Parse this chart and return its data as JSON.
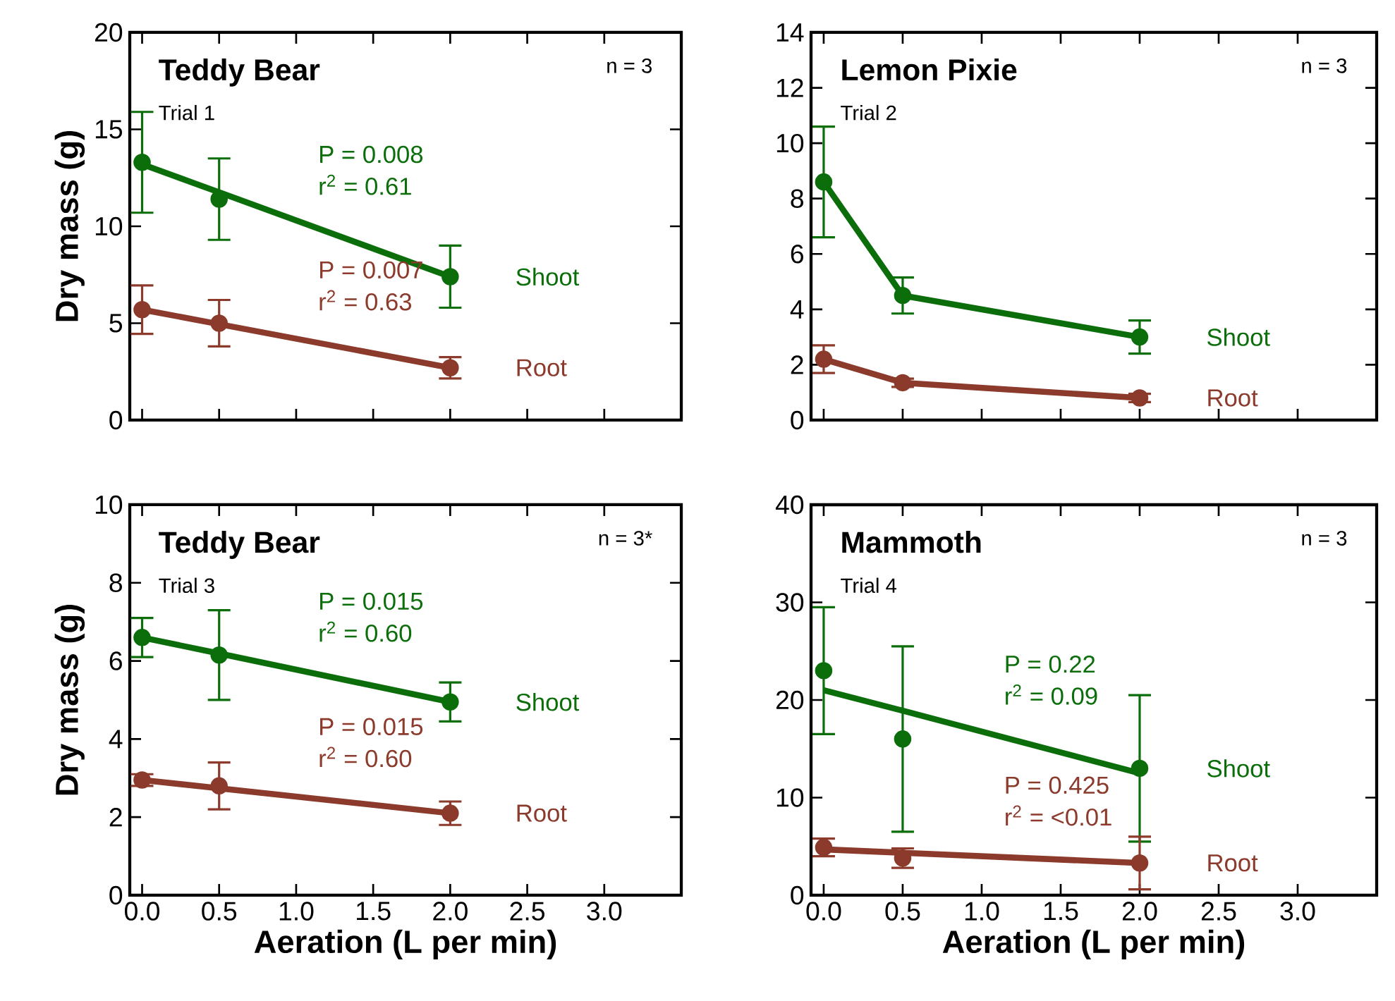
{
  "chart_data": [
    {
      "type": "scatter",
      "title": "Teddy Bear",
      "subtitle": "Trial 1",
      "ylabel": "Dry mass (g)",
      "x": [
        0,
        0.5,
        2
      ],
      "xlim": [
        -0.08,
        3.5
      ],
      "ylim": [
        0,
        20
      ],
      "xticks": [
        0,
        0.5,
        1,
        1.5,
        2,
        2.5,
        3
      ],
      "yticks": [
        0,
        5,
        10,
        15,
        20
      ],
      "tick_labels": "y",
      "marker": "circle",
      "series": [
        {
          "name": "Shoot",
          "color": "#0b6e0b",
          "values": [
            13.3,
            11.4,
            7.4
          ],
          "errors": [
            2.6,
            2.1,
            1.6
          ]
        },
        {
          "name": "Root",
          "color": "#8b3a2b",
          "values": [
            5.7,
            5.0,
            2.7
          ],
          "errors": [
            1.25,
            1.2,
            0.55
          ]
        },
        {
          "type": "line",
          "marker": "none",
          "color": "#0b6e0b",
          "values": [
            13.2,
            11.75,
            7.4
          ]
        },
        {
          "type": "line",
          "marker": "none",
          "color": "#8b3a2b",
          "values": [
            5.7,
            4.95,
            2.7
          ]
        }
      ],
      "annotations": [
        "n = 3",
        "P = 0.008",
        "r$^{2}$ = 0.61",
        "P = 0.007",
        "r$^{2}$ = 0.63"
      ]
    },
    {
      "type": "line",
      "title": "Lemon Pixie",
      "subtitle": "Trial 2",
      "x": [
        0,
        0.5,
        2
      ],
      "xlim": [
        -0.08,
        3.5
      ],
      "ylim": [
        0,
        14
      ],
      "xticks": [
        0,
        0.5,
        1,
        1.5,
        2,
        2.5,
        3
      ],
      "yticks": [
        0,
        2,
        4,
        6,
        8,
        10,
        12,
        14
      ],
      "tick_labels": "y",
      "marker": "circle",
      "series": [
        {
          "name": "Shoot",
          "color": "#0b6e0b",
          "values": [
            8.6,
            4.5,
            3.0
          ],
          "errors": [
            2.0,
            0.65,
            0.6
          ]
        },
        {
          "name": "Root",
          "color": "#8b3a2b",
          "values": [
            2.2,
            1.35,
            0.8
          ],
          "errors": [
            0.5,
            0.15,
            0.15
          ]
        }
      ],
      "annotations": [
        "n = 3"
      ]
    },
    {
      "type": "scatter",
      "title": "Teddy Bear",
      "subtitle": "Trial 3",
      "xlabel": "Aeration (L per min)",
      "ylabel": "Dry mass (g)",
      "x": [
        0,
        0.5,
        2
      ],
      "xlim": [
        -0.08,
        3.5
      ],
      "ylim": [
        0,
        10
      ],
      "xticks": [
        {
          "value": 0,
          "label": "0.0"
        },
        {
          "value": 0.5,
          "label": "0.5"
        },
        {
          "value": 1,
          "label": "1.0"
        },
        {
          "value": 1.5,
          "label": "1.5"
        },
        {
          "value": 2,
          "label": "2.0"
        },
        {
          "value": 2.5,
          "label": "2.5"
        },
        {
          "value": 3,
          "label": "3.0"
        }
      ],
      "yticks": [
        0,
        2,
        4,
        6,
        8,
        10
      ],
      "marker": "circle",
      "series": [
        {
          "name": "Shoot",
          "color": "#0b6e0b",
          "values": [
            6.6,
            6.15,
            4.95
          ],
          "errors": [
            0.5,
            1.15,
            0.5
          ]
        },
        {
          "name": "Root",
          "color": "#8b3a2b",
          "values": [
            2.95,
            2.8,
            2.1
          ],
          "errors": [
            0.15,
            0.6,
            0.3
          ]
        },
        {
          "type": "line",
          "marker": "none",
          "color": "#0b6e0b",
          "values": [
            6.6,
            6.19,
            4.95
          ]
        },
        {
          "type": "line",
          "marker": "none",
          "color": "#8b3a2b",
          "values": [
            2.95,
            2.74,
            2.1
          ]
        }
      ],
      "annotations": [
        "n = 3*",
        "P = 0.015",
        "r$^{2}$ = 0.60",
        "P = 0.015",
        "r$^{2}$ = 0.60"
      ]
    },
    {
      "type": "scatter",
      "title": "Mammoth",
      "subtitle": "Trial 4",
      "xlabel": "Aeration (L per min)",
      "x": [
        0,
        0.5,
        2
      ],
      "xlim": [
        -0.08,
        3.5
      ],
      "ylim": [
        0,
        40
      ],
      "xticks": [
        {
          "value": 0,
          "label": "0.0"
        },
        {
          "value": 0.5,
          "label": "0.5"
        },
        {
          "value": 1,
          "label": "1.0"
        },
        {
          "value": 1.5,
          "label": "1.5"
        },
        {
          "value": 2,
          "label": "2.0"
        },
        {
          "value": 2.5,
          "label": "2.5"
        },
        {
          "value": 3,
          "label": "3.0"
        }
      ],
      "yticks": [
        0,
        10,
        20,
        30,
        40
      ],
      "marker": "circle",
      "series": [
        {
          "name": "Shoot",
          "color": "#0b6e0b",
          "values": [
            23,
            16,
            13
          ],
          "errors": [
            6.5,
            9.5,
            7.5
          ]
        },
        {
          "name": "Root",
          "color": "#8b3a2b",
          "values": [
            4.9,
            3.8,
            3.3
          ],
          "errors": [
            0.9,
            1.0,
            2.7
          ]
        },
        {
          "type": "line",
          "marker": "none",
          "color": "#0b6e0b",
          "values": [
            21,
            18.9,
            12.5
          ]
        },
        {
          "type": "line",
          "marker": "none",
          "color": "#8b3a2b",
          "values": [
            4.7,
            4.35,
            3.3
          ]
        }
      ],
      "annotations": [
        "n = 3",
        "P = 0.22",
        "r$^{2}$ = 0.09",
        "P = 0.425",
        "r$^{2}$ = <0.01"
      ]
    }
  ]
}
